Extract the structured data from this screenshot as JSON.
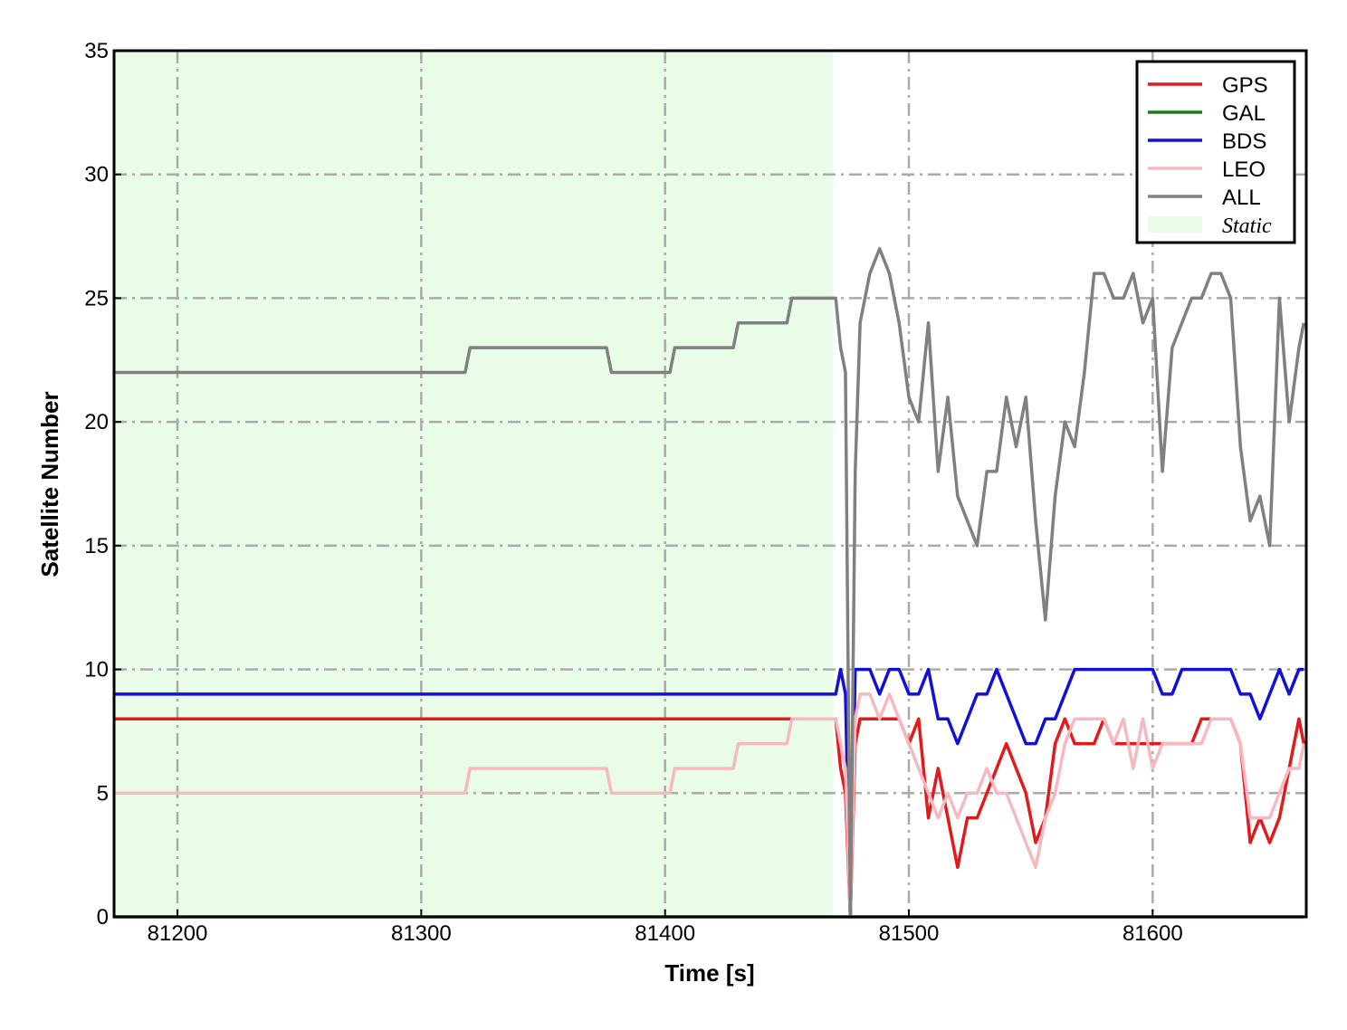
{
  "chart_data": {
    "type": "line",
    "xlabel": "Time [s]",
    "ylabel": "Satellite Number",
    "xlim": [
      81174,
      81663
    ],
    "ylim": [
      0,
      35
    ],
    "xticks": [
      81200,
      81300,
      81400,
      81500,
      81600
    ],
    "yticks": [
      0,
      5,
      10,
      15,
      20,
      25,
      30,
      35
    ],
    "grid": true,
    "legend": "upper right",
    "static_region": {
      "label": "Static",
      "xlim": [
        81174,
        81469
      ],
      "color": "#e8fce8"
    },
    "x": [
      81174,
      81318,
      81320,
      81376,
      81378,
      81402,
      81404,
      81428,
      81430,
      81450,
      81452,
      81468,
      81470,
      81472,
      81474,
      81476,
      81478,
      81480,
      81484,
      81488,
      81492,
      81496,
      81500,
      81504,
      81508,
      81512,
      81516,
      81520,
      81524,
      81528,
      81532,
      81536,
      81540,
      81544,
      81548,
      81552,
      81556,
      81560,
      81564,
      81568,
      81572,
      81576,
      81580,
      81584,
      81588,
      81592,
      81596,
      81600,
      81604,
      81608,
      81612,
      81616,
      81620,
      81624,
      81628,
      81632,
      81636,
      81640,
      81644,
      81648,
      81652,
      81656,
      81660,
      81662
    ],
    "series": [
      {
        "name": "GPS",
        "color": "#e31a1c",
        "values": [
          8,
          8,
          8,
          8,
          8,
          8,
          8,
          8,
          8,
          8,
          8,
          8,
          8,
          6,
          5,
          0,
          7,
          8,
          8,
          8,
          8,
          8,
          7,
          8,
          4,
          6,
          4,
          2,
          4,
          4,
          5,
          6,
          7,
          6,
          5,
          3,
          4,
          7,
          8,
          7,
          7,
          7,
          8,
          7,
          7,
          7,
          7,
          7,
          7,
          7,
          7,
          7,
          8,
          8,
          8,
          8,
          7,
          3,
          4,
          3,
          4,
          6,
          8,
          7
        ]
      },
      {
        "name": "GAL",
        "color": "#1a7a1a",
        "values": [
          0,
          0,
          0,
          0,
          0,
          0,
          0,
          0,
          0,
          0,
          0,
          0,
          0,
          0,
          0,
          0,
          0,
          0,
          0,
          0,
          0,
          0,
          0,
          0,
          0,
          0,
          0,
          0,
          0,
          0,
          0,
          0,
          0,
          0,
          0,
          0,
          0,
          0,
          0,
          0,
          0,
          0,
          0,
          0,
          0,
          0,
          0,
          0,
          0,
          0,
          0,
          0,
          0,
          0,
          0,
          0,
          0,
          0,
          0,
          0,
          0,
          0,
          0,
          0
        ]
      },
      {
        "name": "BDS",
        "color": "#1010d8",
        "values": [
          9,
          9,
          9,
          9,
          9,
          9,
          9,
          9,
          9,
          9,
          9,
          9,
          9,
          10,
          9,
          0,
          10,
          10,
          10,
          9,
          10,
          10,
          9,
          9,
          10,
          8,
          8,
          7,
          8,
          9,
          9,
          10,
          9,
          8,
          7,
          7,
          8,
          8,
          9,
          10,
          10,
          10,
          10,
          10,
          10,
          10,
          10,
          10,
          9,
          9,
          10,
          10,
          10,
          10,
          10,
          10,
          9,
          9,
          8,
          9,
          10,
          9,
          10,
          10
        ]
      },
      {
        "name": "LEO",
        "color": "#f7b8c0",
        "values": [
          5,
          5,
          6,
          6,
          5,
          5,
          6,
          6,
          7,
          7,
          8,
          8,
          8,
          7,
          6,
          0,
          8,
          9,
          9,
          8,
          9,
          8,
          7,
          6,
          5,
          4,
          5,
          4,
          5,
          5,
          6,
          5,
          5,
          4,
          3,
          2,
          4,
          5,
          7,
          8,
          8,
          8,
          8,
          7,
          8,
          6,
          8,
          6,
          7,
          7,
          7,
          7,
          7,
          8,
          8,
          8,
          7,
          4,
          4,
          4,
          5,
          6,
          6,
          7
        ]
      },
      {
        "name": "ALL",
        "color": "#808080",
        "values": [
          22,
          22,
          23,
          23,
          22,
          22,
          23,
          23,
          24,
          24,
          25,
          25,
          25,
          23,
          22,
          0,
          18,
          24,
          26,
          27,
          26,
          24,
          21,
          20,
          24,
          18,
          21,
          17,
          16,
          15,
          18,
          18,
          21,
          19,
          21,
          16,
          12,
          17,
          20,
          19,
          22,
          26,
          26,
          25,
          25,
          26,
          24,
          25,
          18,
          23,
          24,
          25,
          25,
          26,
          26,
          25,
          19,
          16,
          17,
          15,
          25,
          20,
          23,
          24
        ]
      }
    ]
  }
}
